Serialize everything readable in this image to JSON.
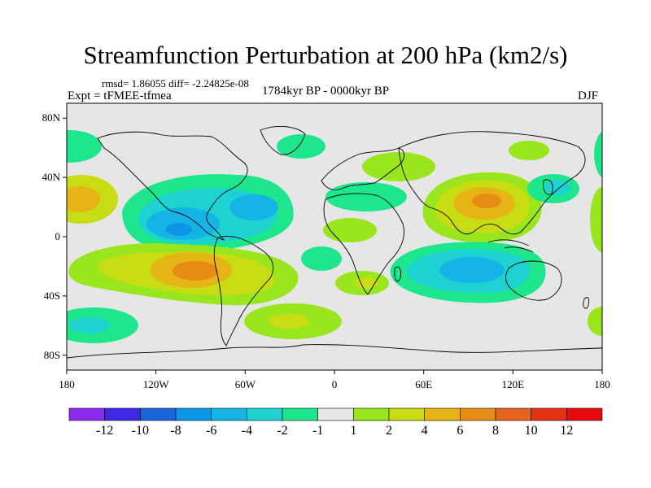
{
  "title": "Streamfunction Perturbation at 200 hPa (km2/s)",
  "stats": "rmsd= 1.86055 diff= -2.24825e-08",
  "experiment": "Expt = tFMEE-tfmea",
  "period": "1784kyr BP - 0000kyr BP",
  "season": "DJF",
  "map": {
    "background_color": "#e6e6e6",
    "lat_ticks": [
      "80N",
      "40N",
      "0",
      "40S",
      "80S"
    ],
    "lon_ticks": [
      "180",
      "120W",
      "60W",
      "0",
      "60E",
      "120E",
      "180"
    ]
  },
  "colorbar": {
    "labels": [
      "-12",
      "-10",
      "-8",
      "-6",
      "-4",
      "-2",
      "-1",
      "1",
      "2",
      "4",
      "6",
      "8",
      "10",
      "12"
    ],
    "colors": [
      "#8c2cf0",
      "#3c28e6",
      "#1a64dc",
      "#0a96e6",
      "#14b4e6",
      "#1ed2d2",
      "#1ee68c",
      "#e6e6e6",
      "#9ae61e",
      "#c8dc14",
      "#e6b414",
      "#e68c14",
      "#e6641e",
      "#e63214",
      "#e60a0a"
    ]
  },
  "chart_data": {
    "type": "heatmap",
    "title": "Streamfunction Perturbation at 200 hPa (km2/s)",
    "variable": "streamfunction perturbation",
    "units": "km2/s",
    "level": "200 hPa",
    "season": "DJF",
    "xlabel": "longitude",
    "ylabel": "latitude",
    "xlim": [
      -180,
      180
    ],
    "ylim": [
      -90,
      90
    ],
    "contour_levels": [
      -12,
      -10,
      -8,
      -6,
      -4,
      -2,
      -1,
      1,
      2,
      4,
      6,
      8,
      10,
      12
    ],
    "features": [
      {
        "region": "Eastern tropical Pacific / Central America",
        "lon": -100,
        "lat": 15,
        "value": -6,
        "sign": "negative"
      },
      {
        "region": "Southeast Pacific / South America",
        "lon": -90,
        "lat": -22,
        "value": 8,
        "sign": "positive"
      },
      {
        "region": "Asia / Bay of Bengal",
        "lon": 100,
        "lat": 28,
        "value": 6,
        "sign": "positive"
      },
      {
        "region": "Indian Ocean / Australia",
        "lon": 95,
        "lat": -22,
        "value": -4,
        "sign": "negative"
      },
      {
        "region": "Western Pacific near Japan",
        "lon": 150,
        "lat": 40,
        "value": -2,
        "sign": "negative"
      },
      {
        "region": "Central North Pacific",
        "lon": -165,
        "lat": 30,
        "value": 4,
        "sign": "positive"
      },
      {
        "region": "South Pacific",
        "lon": -160,
        "lat": -55,
        "value": -2,
        "sign": "negative"
      },
      {
        "region": "South Atlantic",
        "lon": -30,
        "lat": -55,
        "value": 4,
        "sign": "positive"
      },
      {
        "region": "Southern Africa",
        "lon": 5,
        "lat": -30,
        "value": 4,
        "sign": "positive"
      },
      {
        "region": "Eastern Europe",
        "lon": 30,
        "lat": 50,
        "value": 2,
        "sign": "positive"
      },
      {
        "region": "North Atlantic",
        "lon": -40,
        "lat": 60,
        "value": -1,
        "sign": "negative"
      },
      {
        "region": "Tropical Atlantic / West Africa",
        "lon": 0,
        "lat": 10,
        "value": 2,
        "sign": "positive"
      }
    ]
  }
}
